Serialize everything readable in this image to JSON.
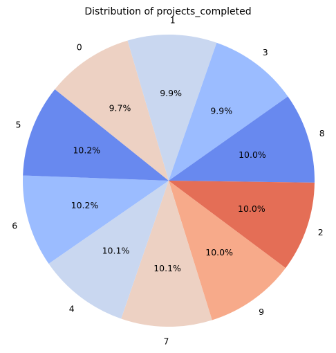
{
  "chart_data": {
    "type": "pie",
    "title": "Distribution of projects_completed",
    "slices": [
      {
        "label": "1",
        "value": 9.9,
        "pct_label": "9.9%",
        "color": "#c9d7f0"
      },
      {
        "label": "3",
        "value": 9.9,
        "pct_label": "9.9%",
        "color": "#9bbcff"
      },
      {
        "label": "8",
        "value": 10.0,
        "pct_label": "10.0%",
        "color": "#6889ef"
      },
      {
        "label": "2",
        "value": 10.0,
        "pct_label": "10.0%",
        "color": "#e46e56"
      },
      {
        "label": "9",
        "value": 10.0,
        "pct_label": "10.0%",
        "color": "#f7aa8a"
      },
      {
        "label": "7",
        "value": 10.1,
        "pct_label": "10.1%",
        "color": "#edd1c3"
      },
      {
        "label": "4",
        "value": 10.1,
        "pct_label": "10.1%",
        "color": "#c9d7f0"
      },
      {
        "label": "6",
        "value": 10.2,
        "pct_label": "10.2%",
        "color": "#9bbcff"
      },
      {
        "label": "5",
        "value": 10.2,
        "pct_label": "10.2%",
        "color": "#6889ef"
      },
      {
        "label": "0",
        "value": 9.7,
        "pct_label": "9.7%",
        "color": "#edd1c3"
      }
    ]
  }
}
